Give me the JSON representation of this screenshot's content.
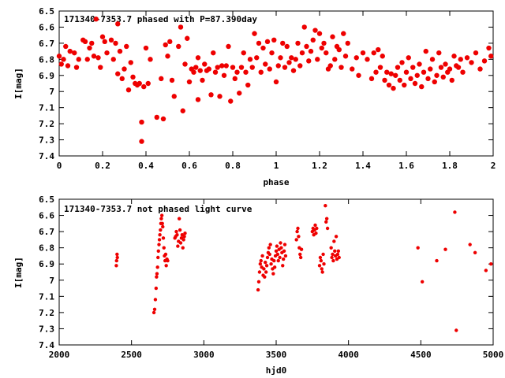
{
  "chart_data": [
    {
      "type": "scatter",
      "title": "171340-7353.7 phased with P=87.390day",
      "xlabel": "phase",
      "ylabel": "I[mag]",
      "xlim": [
        0,
        2
      ],
      "ylim": [
        6.5,
        7.4
      ],
      "y_inverted": true,
      "x_ticks": [
        "0",
        "0.2",
        "0.4",
        "0.6",
        "0.8",
        "1",
        "1.2",
        "1.4",
        "1.6",
        "1.8",
        "2"
      ],
      "y_ticks": [
        "6.5",
        "6.6",
        "6.7",
        "6.8",
        "6.9",
        "7",
        "7.1",
        "7.2",
        "7.3",
        "7.4"
      ],
      "marker_color": "#ee0000",
      "points": [
        [
          0.0,
          6.78
        ],
        [
          0.01,
          6.83
        ],
        [
          0.02,
          6.8
        ],
        [
          0.03,
          6.72
        ],
        [
          0.04,
          6.84
        ],
        [
          0.05,
          6.75
        ],
        [
          0.07,
          6.76
        ],
        [
          0.08,
          6.85
        ],
        [
          0.09,
          6.8
        ],
        [
          0.11,
          6.68
        ],
        [
          0.12,
          6.69
        ],
        [
          0.13,
          6.8
        ],
        [
          0.14,
          6.73
        ],
        [
          0.15,
          6.7
        ],
        [
          0.16,
          6.78
        ],
        [
          0.17,
          6.55
        ],
        [
          0.18,
          6.79
        ],
        [
          0.19,
          6.85
        ],
        [
          0.2,
          6.66
        ],
        [
          0.21,
          6.69
        ],
        [
          0.22,
          6.76
        ],
        [
          0.24,
          6.68
        ],
        [
          0.25,
          6.8
        ],
        [
          0.26,
          6.7
        ],
        [
          0.27,
          6.89
        ],
        [
          0.27,
          6.58
        ],
        [
          0.28,
          6.75
        ],
        [
          0.29,
          6.92
        ],
        [
          0.3,
          6.86
        ],
        [
          0.31,
          6.72
        ],
        [
          0.32,
          6.99
        ],
        [
          0.33,
          6.82
        ],
        [
          0.34,
          6.91
        ],
        [
          0.35,
          6.95
        ],
        [
          0.36,
          6.96
        ],
        [
          0.37,
          6.95
        ],
        [
          0.38,
          7.19
        ],
        [
          0.38,
          7.31
        ],
        [
          0.39,
          6.97
        ],
        [
          0.4,
          6.73
        ],
        [
          0.41,
          6.95
        ],
        [
          0.42,
          6.8
        ],
        [
          0.45,
          7.16
        ],
        [
          0.47,
          6.92
        ],
        [
          0.48,
          7.17
        ],
        [
          0.49,
          6.71
        ],
        [
          0.5,
          6.78
        ],
        [
          0.51,
          6.69
        ],
        [
          0.52,
          6.93
        ],
        [
          0.53,
          7.03
        ],
        [
          0.55,
          6.72
        ],
        [
          0.56,
          6.6
        ],
        [
          0.57,
          7.12
        ],
        [
          0.58,
          6.83
        ],
        [
          0.59,
          6.67
        ],
        [
          0.6,
          6.94
        ],
        [
          0.61,
          6.86
        ],
        [
          0.62,
          6.88
        ],
        [
          0.63,
          6.85
        ],
        [
          0.64,
          6.79
        ],
        [
          0.64,
          7.05
        ],
        [
          0.65,
          6.87
        ],
        [
          0.66,
          6.93
        ],
        [
          0.67,
          6.83
        ],
        [
          0.68,
          6.87
        ],
        [
          0.69,
          6.86
        ],
        [
          0.7,
          7.02
        ],
        [
          0.71,
          6.76
        ],
        [
          0.72,
          6.88
        ],
        [
          0.73,
          6.85
        ],
        [
          0.74,
          7.03
        ],
        [
          0.75,
          6.84
        ],
        [
          0.76,
          6.9
        ],
        [
          0.77,
          6.84
        ],
        [
          0.78,
          6.72
        ],
        [
          0.79,
          7.06
        ],
        [
          0.8,
          6.85
        ],
        [
          0.81,
          6.92
        ],
        [
          0.82,
          6.88
        ],
        [
          0.83,
          7.01
        ],
        [
          0.84,
          6.85
        ],
        [
          0.85,
          6.76
        ],
        [
          0.86,
          6.88
        ],
        [
          0.87,
          6.96
        ],
        [
          0.88,
          6.8
        ],
        [
          0.89,
          6.85
        ],
        [
          0.9,
          6.64
        ],
        [
          0.91,
          6.79
        ],
        [
          0.92,
          6.7
        ],
        [
          0.93,
          6.88
        ],
        [
          0.94,
          6.73
        ],
        [
          0.95,
          6.83
        ],
        [
          0.96,
          6.69
        ],
        [
          0.97,
          6.86
        ],
        [
          0.98,
          6.76
        ],
        [
          0.99,
          6.68
        ],
        [
          1.0,
          6.94
        ],
        [
          1.01,
          6.84
        ],
        [
          1.02,
          6.79
        ],
        [
          1.03,
          6.7
        ],
        [
          1.04,
          6.85
        ],
        [
          1.05,
          6.72
        ],
        [
          1.06,
          6.82
        ],
        [
          1.07,
          6.79
        ],
        [
          1.08,
          6.87
        ],
        [
          1.09,
          6.8
        ],
        [
          1.1,
          6.7
        ],
        [
          1.11,
          6.84
        ],
        [
          1.12,
          6.76
        ],
        [
          1.13,
          6.6
        ],
        [
          1.14,
          6.72
        ],
        [
          1.15,
          6.81
        ],
        [
          1.16,
          6.75
        ],
        [
          1.17,
          6.68
        ],
        [
          1.18,
          6.62
        ],
        [
          1.19,
          6.8
        ],
        [
          1.2,
          6.64
        ],
        [
          1.21,
          6.73
        ],
        [
          1.22,
          6.7
        ],
        [
          1.23,
          6.76
        ],
        [
          1.24,
          6.86
        ],
        [
          1.25,
          6.84
        ],
        [
          1.26,
          6.66
        ],
        [
          1.27,
          6.8
        ],
        [
          1.28,
          6.72
        ],
        [
          1.29,
          6.74
        ],
        [
          1.3,
          6.85
        ],
        [
          1.31,
          6.64
        ],
        [
          1.32,
          6.78
        ],
        [
          1.33,
          6.7
        ],
        [
          1.35,
          6.86
        ],
        [
          1.37,
          6.79
        ],
        [
          1.38,
          6.9
        ],
        [
          1.4,
          6.76
        ],
        [
          1.42,
          6.8
        ],
        [
          1.44,
          6.92
        ],
        [
          1.45,
          6.76
        ],
        [
          1.46,
          6.88
        ],
        [
          1.47,
          6.74
        ],
        [
          1.48,
          6.85
        ],
        [
          1.49,
          6.78
        ],
        [
          1.5,
          6.93
        ],
        [
          1.51,
          6.88
        ],
        [
          1.52,
          6.96
        ],
        [
          1.53,
          6.89
        ],
        [
          1.54,
          6.98
        ],
        [
          1.55,
          6.9
        ],
        [
          1.56,
          6.85
        ],
        [
          1.57,
          6.93
        ],
        [
          1.58,
          6.82
        ],
        [
          1.59,
          6.96
        ],
        [
          1.6,
          6.88
        ],
        [
          1.61,
          6.79
        ],
        [
          1.62,
          6.92
        ],
        [
          1.63,
          6.85
        ],
        [
          1.64,
          6.95
        ],
        [
          1.65,
          6.9
        ],
        [
          1.66,
          6.83
        ],
        [
          1.67,
          6.97
        ],
        [
          1.68,
          6.88
        ],
        [
          1.69,
          6.75
        ],
        [
          1.7,
          6.92
        ],
        [
          1.71,
          6.86
        ],
        [
          1.72,
          6.8
        ],
        [
          1.73,
          6.94
        ],
        [
          1.74,
          6.9
        ],
        [
          1.75,
          6.76
        ],
        [
          1.76,
          6.85
        ],
        [
          1.77,
          6.91
        ],
        [
          1.78,
          6.83
        ],
        [
          1.79,
          6.88
        ],
        [
          1.8,
          6.86
        ],
        [
          1.81,
          6.93
        ],
        [
          1.82,
          6.78
        ],
        [
          1.83,
          6.84
        ],
        [
          1.84,
          6.85
        ],
        [
          1.85,
          6.8
        ],
        [
          1.86,
          6.88
        ],
        [
          1.88,
          6.79
        ],
        [
          1.9,
          6.82
        ],
        [
          1.92,
          6.76
        ],
        [
          1.94,
          6.86
        ],
        [
          1.96,
          6.81
        ],
        [
          1.98,
          6.73
        ],
        [
          1.99,
          6.78
        ]
      ]
    },
    {
      "type": "scatter",
      "title": "171340-7353.7 not phased light curve",
      "xlabel": "hjd0",
      "ylabel": "I[mag]",
      "xlim": [
        2000,
        5000
      ],
      "ylim": [
        6.5,
        7.4
      ],
      "y_inverted": true,
      "x_ticks": [
        "2000",
        "2500",
        "3000",
        "3500",
        "4000",
        "4500",
        "5000"
      ],
      "y_ticks": [
        "6.5",
        "6.6",
        "6.7",
        "6.8",
        "6.9",
        "7",
        "7.1",
        "7.2",
        "7.3",
        "7.4"
      ],
      "marker_color": "#ee0000",
      "points": [
        [
          2395,
          6.91
        ],
        [
          2397,
          6.88
        ],
        [
          2400,
          6.84
        ],
        [
          2402,
          6.86
        ],
        [
          2655,
          7.2
        ],
        [
          2660,
          7.18
        ],
        [
          2665,
          7.12
        ],
        [
          2670,
          7.05
        ],
        [
          2673,
          6.98
        ],
        [
          2676,
          6.96
        ],
        [
          2680,
          6.92
        ],
        [
          2683,
          6.86
        ],
        [
          2686,
          6.82
        ],
        [
          2690,
          6.78
        ],
        [
          2693,
          6.75
        ],
        [
          2696,
          6.72
        ],
        [
          2700,
          6.69
        ],
        [
          2703,
          6.65
        ],
        [
          2706,
          6.62
        ],
        [
          2710,
          6.6
        ],
        [
          2713,
          6.65
        ],
        [
          2716,
          6.67
        ],
        [
          2720,
          6.74
        ],
        [
          2724,
          6.8
        ],
        [
          2728,
          6.85
        ],
        [
          2732,
          6.88
        ],
        [
          2736,
          6.84
        ],
        [
          2740,
          6.91
        ],
        [
          2745,
          6.87
        ],
        [
          2750,
          6.88
        ],
        [
          2800,
          6.74
        ],
        [
          2805,
          6.73
        ],
        [
          2810,
          6.7
        ],
        [
          2815,
          6.72
        ],
        [
          2820,
          6.79
        ],
        [
          2825,
          6.76
        ],
        [
          2830,
          6.62
        ],
        [
          2835,
          6.69
        ],
        [
          2840,
          6.77
        ],
        [
          2845,
          6.74
        ],
        [
          2850,
          6.72
        ],
        [
          2855,
          6.8
        ],
        [
          2860,
          6.75
        ],
        [
          2865,
          6.73
        ],
        [
          2870,
          6.71
        ],
        [
          3375,
          7.06
        ],
        [
          3380,
          7.01
        ],
        [
          3385,
          6.95
        ],
        [
          3390,
          6.9
        ],
        [
          3395,
          6.88
        ],
        [
          3400,
          6.92
        ],
        [
          3405,
          6.85
        ],
        [
          3410,
          6.97
        ],
        [
          3415,
          6.93
        ],
        [
          3420,
          6.98
        ],
        [
          3425,
          6.89
        ],
        [
          3430,
          6.95
        ],
        [
          3435,
          6.91
        ],
        [
          3440,
          6.86
        ],
        [
          3445,
          6.83
        ],
        [
          3450,
          6.8
        ],
        [
          3455,
          6.84
        ],
        [
          3460,
          6.78
        ],
        [
          3465,
          6.9
        ],
        [
          3470,
          6.87
        ],
        [
          3475,
          6.93
        ],
        [
          3480,
          6.96
        ],
        [
          3485,
          6.88
        ],
        [
          3490,
          6.92
        ],
        [
          3495,
          6.85
        ],
        [
          3500,
          6.82
        ],
        [
          3505,
          6.79
        ],
        [
          3510,
          6.84
        ],
        [
          3515,
          6.88
        ],
        [
          3520,
          6.81
        ],
        [
          3525,
          6.86
        ],
        [
          3530,
          6.77
        ],
        [
          3535,
          6.8
        ],
        [
          3540,
          6.83
        ],
        [
          3545,
          6.91
        ],
        [
          3550,
          6.87
        ],
        [
          3555,
          6.82
        ],
        [
          3560,
          6.78
        ],
        [
          3565,
          6.85
        ],
        [
          3640,
          6.75
        ],
        [
          3645,
          6.7
        ],
        [
          3650,
          6.68
        ],
        [
          3655,
          6.73
        ],
        [
          3660,
          6.8
        ],
        [
          3665,
          6.84
        ],
        [
          3670,
          6.86
        ],
        [
          3675,
          6.81
        ],
        [
          3750,
          6.7
        ],
        [
          3755,
          6.68
        ],
        [
          3760,
          6.72
        ],
        [
          3765,
          6.69
        ],
        [
          3770,
          6.66
        ],
        [
          3775,
          6.71
        ],
        [
          3780,
          6.68
        ],
        [
          3800,
          6.91
        ],
        [
          3805,
          6.86
        ],
        [
          3810,
          6.88
        ],
        [
          3815,
          6.93
        ],
        [
          3820,
          6.95
        ],
        [
          3825,
          6.84
        ],
        [
          3830,
          6.9
        ],
        [
          3840,
          6.54
        ],
        [
          3845,
          6.64
        ],
        [
          3850,
          6.62
        ],
        [
          3855,
          6.68
        ],
        [
          3880,
          6.8
        ],
        [
          3885,
          6.86
        ],
        [
          3890,
          6.84
        ],
        [
          3895,
          6.88
        ],
        [
          3900,
          6.76
        ],
        [
          3905,
          6.82
        ],
        [
          3910,
          6.85
        ],
        [
          3915,
          6.73
        ],
        [
          3920,
          6.87
        ],
        [
          3925,
          6.84
        ],
        [
          3930,
          6.82
        ],
        [
          3935,
          6.86
        ],
        [
          4480,
          6.8
        ],
        [
          4510,
          7.01
        ],
        [
          4610,
          6.88
        ],
        [
          4670,
          6.81
        ],
        [
          4735,
          6.58
        ],
        [
          4745,
          7.31
        ],
        [
          4840,
          6.78
        ],
        [
          4875,
          6.83
        ],
        [
          4950,
          6.94
        ],
        [
          4985,
          6.9
        ]
      ]
    }
  ]
}
